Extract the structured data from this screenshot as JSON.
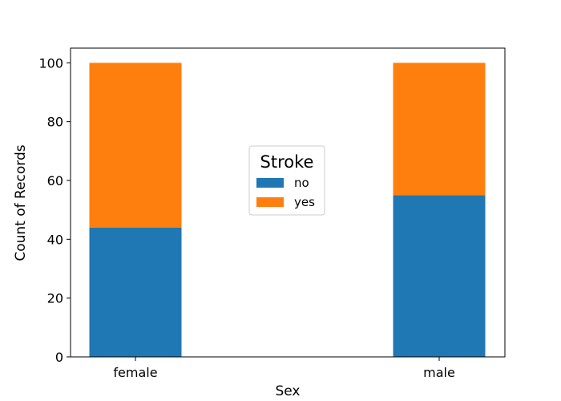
{
  "chart_data": {
    "type": "bar",
    "stacked": true,
    "categories": [
      "female",
      "male"
    ],
    "series": [
      {
        "name": "no",
        "values": [
          44,
          55
        ],
        "color": "#1f77b4"
      },
      {
        "name": "yes",
        "values": [
          56,
          45
        ],
        "color": "#ff7f0e"
      }
    ],
    "xlabel": "Sex",
    "ylabel": "Count of Records",
    "ylim": [
      0,
      105
    ],
    "yticks": [
      0,
      20,
      40,
      60,
      80,
      100
    ],
    "grid": false,
    "legend": {
      "title": "Stroke",
      "placement": "center"
    }
  }
}
